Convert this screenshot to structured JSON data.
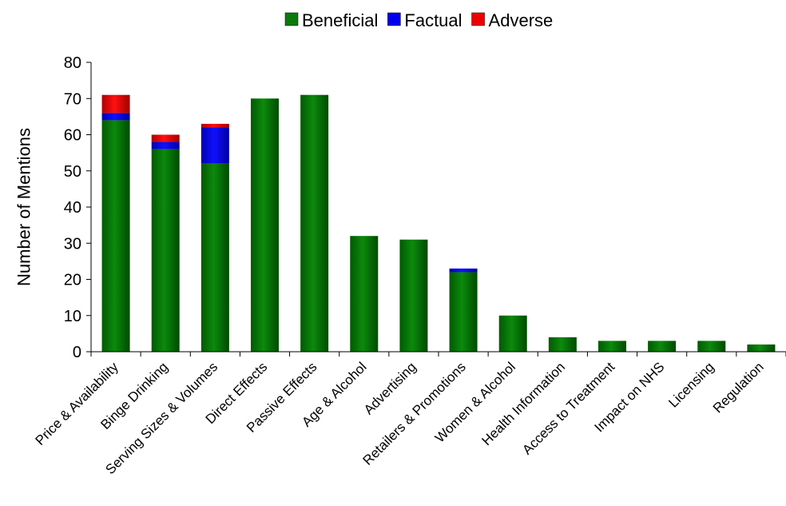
{
  "chart_data": {
    "type": "bar",
    "stacked": true,
    "ylabel": "Number of Mentions",
    "xlabel": "",
    "ylim": [
      0,
      80
    ],
    "yticks": [
      0,
      10,
      20,
      30,
      40,
      50,
      60,
      70,
      80
    ],
    "grid": false,
    "legend_position": "top",
    "categories": [
      "Price & Availability",
      "Binge Drinking",
      "Serving Sizes & Volumes",
      "Direct Effects",
      "Passive Effects",
      "Age & Alcohol",
      "Advertising",
      "Retailers & Promotions",
      "Women & Alcohol",
      "Health Information",
      "Access to Treatment",
      "Impact on NHS",
      "Licensing",
      "Regulation"
    ],
    "series": [
      {
        "name": "Beneficial",
        "color": "#0a7a0a",
        "values": [
          64,
          56,
          52,
          70,
          71,
          32,
          31,
          22,
          10,
          4,
          3,
          3,
          3,
          2
        ]
      },
      {
        "name": "Factual",
        "color": "#0000ee",
        "values": [
          2,
          2,
          10,
          0,
          0,
          0,
          0,
          1,
          0,
          0,
          0,
          0,
          0,
          0
        ]
      },
      {
        "name": "Adverse",
        "color": "#ee0000",
        "values": [
          5,
          2,
          1,
          0,
          0,
          0,
          0,
          0,
          0,
          0,
          0,
          0,
          0,
          0
        ]
      }
    ]
  }
}
